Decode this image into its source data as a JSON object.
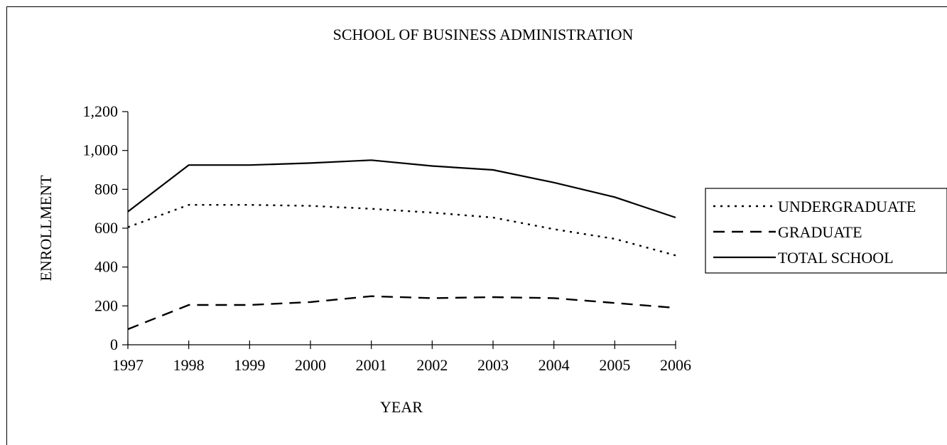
{
  "chart_data": {
    "type": "line",
    "title": "SCHOOL OF BUSINESS ADMINISTRATION",
    "xlabel": "YEAR",
    "ylabel": "ENROLLMENT",
    "x": [
      "1997",
      "1998",
      "1999",
      "2000",
      "2001",
      "2002",
      "2003",
      "2004",
      "2005",
      "2006"
    ],
    "ylim": [
      0,
      1200
    ],
    "yticks": [
      0,
      200,
      400,
      600,
      800,
      1000,
      1200
    ],
    "ytick_labels": [
      "0",
      "200",
      "400",
      "600",
      "800",
      "1,000",
      "1,200"
    ],
    "grid": false,
    "legend_position": "right",
    "series": [
      {
        "name": "UNDERGRADUATE",
        "style": "dotted",
        "values": [
          605,
          720,
          720,
          715,
          700,
          680,
          655,
          595,
          545,
          460
        ]
      },
      {
        "name": "GRADUATE",
        "style": "dashed",
        "values": [
          80,
          205,
          205,
          220,
          250,
          240,
          245,
          240,
          215,
          190
        ]
      },
      {
        "name": "TOTAL SCHOOL",
        "style": "solid",
        "values": [
          685,
          925,
          925,
          935,
          950,
          920,
          900,
          835,
          760,
          655
        ]
      }
    ]
  }
}
